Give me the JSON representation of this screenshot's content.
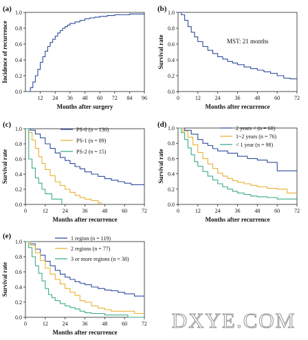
{
  "figure": {
    "watermark": "DXYE.COM"
  },
  "chart_data": [
    {
      "type": "line",
      "panel_label": "(a)",
      "xlabel": "Months after surgery",
      "ylabel": "Incidence of recurrence",
      "xlim": [
        0,
        96
      ],
      "ylim": [
        0,
        1.0
      ],
      "xticks": [
        12,
        24,
        36,
        48,
        60,
        72,
        84,
        96
      ],
      "yticks": [
        0,
        0.2,
        0.4,
        0.6,
        0.8,
        1.0
      ],
      "step": true,
      "series": [
        {
          "color": "#2b4a9a",
          "points": [
            [
              2,
              0
            ],
            [
              4,
              0.05
            ],
            [
              6,
              0.12
            ],
            [
              8,
              0.2
            ],
            [
              10,
              0.28
            ],
            [
              12,
              0.37
            ],
            [
              14,
              0.44
            ],
            [
              16,
              0.51
            ],
            [
              18,
              0.57
            ],
            [
              20,
              0.62
            ],
            [
              22,
              0.66
            ],
            [
              24,
              0.7
            ],
            [
              26,
              0.74
            ],
            [
              28,
              0.77
            ],
            [
              30,
              0.8
            ],
            [
              32,
              0.82
            ],
            [
              34,
              0.84
            ],
            [
              36,
              0.86
            ],
            [
              40,
              0.88
            ],
            [
              44,
              0.9
            ],
            [
              48,
              0.92
            ],
            [
              52,
              0.93
            ],
            [
              56,
              0.94
            ],
            [
              60,
              0.95
            ],
            [
              66,
              0.96
            ],
            [
              72,
              0.97
            ],
            [
              78,
              0.97
            ],
            [
              84,
              0.98
            ],
            [
              90,
              0.98
            ],
            [
              96,
              0.99
            ]
          ]
        }
      ]
    },
    {
      "type": "line",
      "panel_label": "(b)",
      "xlabel": "Months after recurrence",
      "ylabel": "Survival rate",
      "annotation": "MST: 21 months",
      "xlim": [
        0,
        72
      ],
      "ylim": [
        0,
        1.0
      ],
      "xticks": [
        0,
        12,
        24,
        36,
        48,
        60,
        72
      ],
      "yticks": [
        0,
        0.2,
        0.4,
        0.6,
        0.8,
        1.0
      ],
      "step": true,
      "series": [
        {
          "color": "#2b4a9a",
          "points": [
            [
              0,
              1.0
            ],
            [
              2,
              0.97
            ],
            [
              4,
              0.9
            ],
            [
              6,
              0.82
            ],
            [
              8,
              0.75
            ],
            [
              10,
              0.69
            ],
            [
              12,
              0.63
            ],
            [
              15,
              0.57
            ],
            [
              18,
              0.52
            ],
            [
              21,
              0.48
            ],
            [
              24,
              0.44
            ],
            [
              27,
              0.41
            ],
            [
              30,
              0.38
            ],
            [
              33,
              0.36
            ],
            [
              36,
              0.34
            ],
            [
              40,
              0.31
            ],
            [
              44,
              0.29
            ],
            [
              48,
              0.27
            ],
            [
              52,
              0.25
            ],
            [
              56,
              0.23
            ],
            [
              60,
              0.2
            ],
            [
              64,
              0.17
            ],
            [
              68,
              0.16
            ],
            [
              72,
              0.16
            ]
          ]
        }
      ]
    },
    {
      "type": "line",
      "panel_label": "(c)",
      "xlabel": "Months after recurrence",
      "ylabel": "Survival rate",
      "xlim": [
        0,
        72
      ],
      "ylim": [
        0,
        1.0
      ],
      "xticks": [
        0,
        12,
        24,
        36,
        48,
        60,
        72
      ],
      "yticks": [
        0,
        0.2,
        0.4,
        0.6,
        0.8,
        1.0
      ],
      "legend": "top-right",
      "step": true,
      "series": [
        {
          "name": "PS-0 (n = 130)",
          "color": "#2b4a9a",
          "points": [
            [
              0,
              1.0
            ],
            [
              3,
              0.98
            ],
            [
              6,
              0.93
            ],
            [
              9,
              0.88
            ],
            [
              12,
              0.8
            ],
            [
              15,
              0.74
            ],
            [
              18,
              0.68
            ],
            [
              21,
              0.62
            ],
            [
              24,
              0.58
            ],
            [
              27,
              0.54
            ],
            [
              30,
              0.5
            ],
            [
              33,
              0.47
            ],
            [
              36,
              0.43
            ],
            [
              40,
              0.4
            ],
            [
              44,
              0.37
            ],
            [
              48,
              0.34
            ],
            [
              52,
              0.32
            ],
            [
              56,
              0.3
            ],
            [
              60,
              0.28
            ],
            [
              64,
              0.26
            ],
            [
              72,
              0.26
            ]
          ]
        },
        {
          "name": "PS-1 (n = 89)",
          "color": "#e8b030",
          "points": [
            [
              0,
              1.0
            ],
            [
              2,
              0.95
            ],
            [
              4,
              0.85
            ],
            [
              6,
              0.74
            ],
            [
              8,
              0.63
            ],
            [
              10,
              0.54
            ],
            [
              12,
              0.46
            ],
            [
              15,
              0.38
            ],
            [
              18,
              0.3
            ],
            [
              21,
              0.25
            ],
            [
              24,
              0.2
            ],
            [
              27,
              0.16
            ],
            [
              30,
              0.12
            ],
            [
              33,
              0.09
            ],
            [
              36,
              0.07
            ],
            [
              40,
              0.05
            ],
            [
              44,
              0.02
            ],
            [
              46,
              0.0
            ]
          ]
        },
        {
          "name": "PS-2 (n = 15)",
          "color": "#3aaa86",
          "points": [
            [
              0,
              1.0
            ],
            [
              2,
              0.6
            ],
            [
              4,
              0.48
            ],
            [
              6,
              0.35
            ],
            [
              8,
              0.28
            ],
            [
              10,
              0.2
            ],
            [
              12,
              0.14
            ],
            [
              14,
              0.14
            ],
            [
              16,
              0.07
            ],
            [
              20,
              0.07
            ],
            [
              22,
              0.0
            ]
          ]
        }
      ]
    },
    {
      "type": "line",
      "panel_label": "(d)",
      "xlabel": "Months after recurrence",
      "ylabel": "Survival rate",
      "xlim": [
        0,
        72
      ],
      "ylim": [
        0,
        1.0
      ],
      "xticks": [
        0,
        12,
        24,
        36,
        48,
        60,
        72
      ],
      "yticks": [
        0,
        0.2,
        0.4,
        0.6,
        0.8,
        1.0
      ],
      "legend": "top-right",
      "step": true,
      "series": [
        {
          "name": "2 years < (n = 60)",
          "color": "#2b4a9a",
          "points": [
            [
              0,
              1.0
            ],
            [
              4,
              0.97
            ],
            [
              8,
              0.92
            ],
            [
              12,
              0.85
            ],
            [
              15,
              0.8
            ],
            [
              18,
              0.77
            ],
            [
              21,
              0.73
            ],
            [
              24,
              0.7
            ],
            [
              30,
              0.67
            ],
            [
              36,
              0.63
            ],
            [
              42,
              0.6
            ],
            [
              48,
              0.58
            ],
            [
              54,
              0.55
            ],
            [
              59,
              0.55
            ],
            [
              60,
              0.44
            ],
            [
              72,
              0.44
            ]
          ]
        },
        {
          "name": "1~2 years (n = 76)",
          "color": "#e8b030",
          "points": [
            [
              0,
              1.0
            ],
            [
              3,
              0.96
            ],
            [
              6,
              0.88
            ],
            [
              9,
              0.78
            ],
            [
              12,
              0.68
            ],
            [
              15,
              0.6
            ],
            [
              18,
              0.53
            ],
            [
              21,
              0.47
            ],
            [
              24,
              0.41
            ],
            [
              27,
              0.37
            ],
            [
              30,
              0.34
            ],
            [
              33,
              0.31
            ],
            [
              36,
              0.29
            ],
            [
              40,
              0.27
            ],
            [
              44,
              0.25
            ],
            [
              48,
              0.23
            ],
            [
              54,
              0.21
            ],
            [
              60,
              0.2
            ],
            [
              66,
              0.15
            ],
            [
              72,
              0.15
            ]
          ]
        },
        {
          "name": "< 1 year (n = 98)",
          "color": "#3aaa86",
          "points": [
            [
              0,
              1.0
            ],
            [
              2,
              0.94
            ],
            [
              4,
              0.85
            ],
            [
              6,
              0.74
            ],
            [
              8,
              0.65
            ],
            [
              10,
              0.56
            ],
            [
              12,
              0.5
            ],
            [
              15,
              0.43
            ],
            [
              18,
              0.37
            ],
            [
              21,
              0.32
            ],
            [
              24,
              0.27
            ],
            [
              27,
              0.23
            ],
            [
              30,
              0.2
            ],
            [
              33,
              0.17
            ],
            [
              36,
              0.15
            ],
            [
              40,
              0.13
            ],
            [
              44,
              0.11
            ],
            [
              48,
              0.1
            ],
            [
              54,
              0.09
            ],
            [
              60,
              0.07
            ],
            [
              72,
              0.07
            ]
          ]
        }
      ]
    },
    {
      "type": "line",
      "panel_label": "(e)",
      "xlabel": "Months after recurrence",
      "ylabel": "Survival rate",
      "xlim": [
        0,
        72
      ],
      "ylim": [
        0,
        1.0
      ],
      "xticks": [
        0,
        12,
        24,
        36,
        48,
        60,
        72
      ],
      "yticks": [
        0,
        0.2,
        0.4,
        0.6,
        0.8,
        1.0
      ],
      "legend": "top-right",
      "step": true,
      "series": [
        {
          "name": "1 region (n = 119)",
          "color": "#2b4a9a",
          "points": [
            [
              0,
              1.0
            ],
            [
              3,
              0.97
            ],
            [
              6,
              0.9
            ],
            [
              9,
              0.82
            ],
            [
              12,
              0.74
            ],
            [
              15,
              0.68
            ],
            [
              18,
              0.62
            ],
            [
              21,
              0.57
            ],
            [
              24,
              0.53
            ],
            [
              27,
              0.5
            ],
            [
              30,
              0.47
            ],
            [
              33,
              0.45
            ],
            [
              36,
              0.43
            ],
            [
              40,
              0.4
            ],
            [
              44,
              0.38
            ],
            [
              48,
              0.36
            ],
            [
              52,
              0.35
            ],
            [
              56,
              0.33
            ],
            [
              60,
              0.31
            ],
            [
              66,
              0.28
            ],
            [
              72,
              0.28
            ]
          ]
        },
        {
          "name": "2 regions (n = 77)",
          "color": "#e8b030",
          "points": [
            [
              0,
              1.0
            ],
            [
              3,
              0.95
            ],
            [
              6,
              0.85
            ],
            [
              9,
              0.75
            ],
            [
              12,
              0.65
            ],
            [
              15,
              0.57
            ],
            [
              18,
              0.5
            ],
            [
              21,
              0.44
            ],
            [
              24,
              0.38
            ],
            [
              27,
              0.33
            ],
            [
              30,
              0.29
            ],
            [
              33,
              0.22
            ],
            [
              36,
              0.2
            ],
            [
              40,
              0.15
            ],
            [
              44,
              0.12
            ],
            [
              48,
              0.1
            ],
            [
              52,
              0.08
            ],
            [
              60,
              0.08
            ],
            [
              66,
              0.05
            ],
            [
              72,
              0.05
            ]
          ]
        },
        {
          "name": "3 or more regions (n = 38)",
          "color": "#3aaa86",
          "points": [
            [
              0,
              1.0
            ],
            [
              2,
              0.92
            ],
            [
              4,
              0.8
            ],
            [
              6,
              0.68
            ],
            [
              8,
              0.58
            ],
            [
              10,
              0.48
            ],
            [
              12,
              0.38
            ],
            [
              14,
              0.3
            ],
            [
              16,
              0.26
            ],
            [
              18,
              0.22
            ],
            [
              21,
              0.18
            ],
            [
              24,
              0.15
            ],
            [
              27,
              0.13
            ],
            [
              30,
              0.11
            ],
            [
              33,
              0.08
            ],
            [
              36,
              0.06
            ],
            [
              40,
              0.05
            ],
            [
              48,
              0.03
            ],
            [
              60,
              0.03
            ],
            [
              62,
              0.0
            ],
            [
              72,
              0.0
            ]
          ]
        }
      ]
    }
  ]
}
